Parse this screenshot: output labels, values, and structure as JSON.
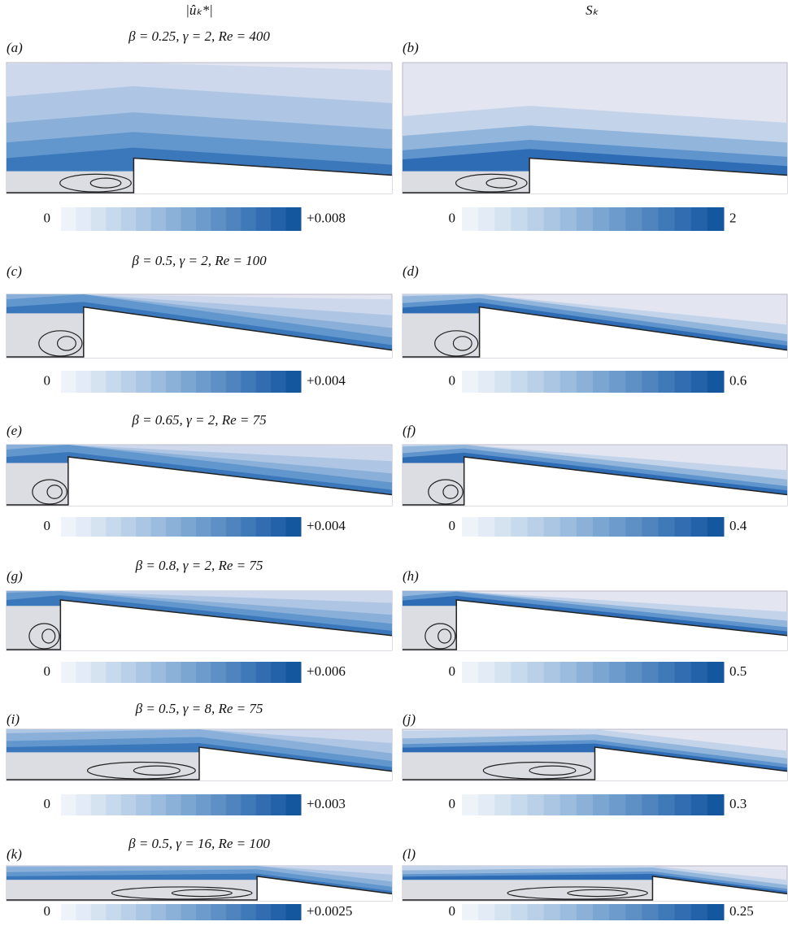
{
  "columns": [
    {
      "header": "|ûₖ*|"
    },
    {
      "header": "Sₖ"
    }
  ],
  "rows": [
    {
      "left": {
        "label": "(a)",
        "params": "β = 0.25, γ = 2, Re = 400",
        "min": "0",
        "max": "+0.008"
      },
      "right": {
        "label": "(b)",
        "min": "0",
        "max": "2"
      }
    },
    {
      "left": {
        "label": "(c)",
        "params": "β = 0.5, γ = 2, Re = 100",
        "min": "0",
        "max": "+0.004"
      },
      "right": {
        "label": "(d)",
        "min": "0",
        "max": "0.6"
      }
    },
    {
      "left": {
        "label": "(e)",
        "params": "β = 0.65, γ = 2, Re = 75",
        "min": "0",
        "max": "+0.004"
      },
      "right": {
        "label": "(f)",
        "min": "0",
        "max": "0.4"
      }
    },
    {
      "left": {
        "label": "(g)",
        "params": "β = 0.8, γ = 2, Re = 75",
        "min": "0",
        "max": "+0.006"
      },
      "right": {
        "label": "(h)",
        "min": "0",
        "max": "0.5"
      }
    },
    {
      "left": {
        "label": "(i)",
        "params": "β = 0.5, γ = 8, Re = 75",
        "min": "0",
        "max": "+0.003"
      },
      "right": {
        "label": "(j)",
        "min": "0",
        "max": "0.3"
      }
    },
    {
      "left": {
        "label": "(k)",
        "params": "β = 0.5, γ = 16, Re = 100",
        "min": "0",
        "max": "+0.0025"
      },
      "right": {
        "label": "(l)",
        "min": "0",
        "max": "0.25"
      }
    }
  ]
}
